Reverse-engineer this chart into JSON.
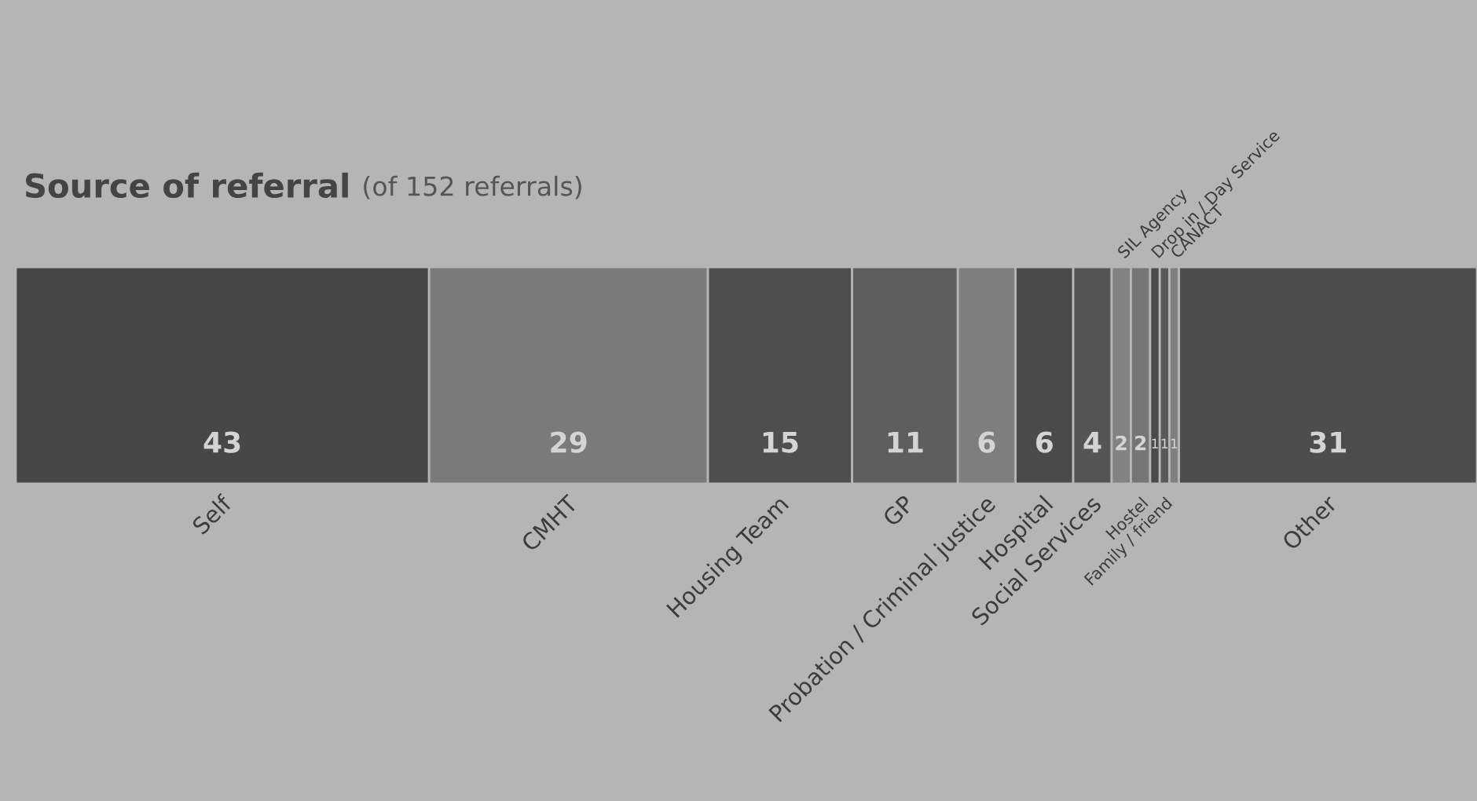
{
  "chart_data": {
    "type": "bar",
    "orientation": "horizontal",
    "stacked": true,
    "title": "Source of referral",
    "subtitle": "(of 152 referrals)",
    "categories": [
      null
    ],
    "data_labels": true,
    "xlim": [
      0,
      152
    ],
    "series": [
      {
        "name": "Self",
        "color": "#474747",
        "values": [
          43
        ]
      },
      {
        "name": "CMHT",
        "color": "#7a7a7a",
        "values": [
          29
        ]
      },
      {
        "name": "Housing Team",
        "color": "#4e4e4e",
        "values": [
          15
        ]
      },
      {
        "name": "GP",
        "color": "#5e5e5e",
        "values": [
          11
        ]
      },
      {
        "name": "Probation / Criminal justice",
        "color": "#7e7e7e",
        "values": [
          6
        ]
      },
      {
        "name": "Hospital",
        "color": "#4a4a4a",
        "values": [
          6
        ]
      },
      {
        "name": "Social Services",
        "color": "#555555",
        "values": [
          4
        ]
      },
      {
        "name": "SIL Agency",
        "color": "#828282",
        "values": [
          2
        ]
      },
      {
        "name": "Hostel",
        "color": "#757575",
        "values": [
          2
        ]
      },
      {
        "name": "Drop in / Day Service",
        "color": "#4a4a4a",
        "values": [
          1
        ]
      },
      {
        "name": "Family / friend",
        "color": "#5a5a5a",
        "values": [
          1
        ]
      },
      {
        "name": "CANACT",
        "color": "#808080",
        "values": [
          1
        ]
      },
      {
        "name": "Other",
        "color": "#4d4d4d",
        "values": [
          31
        ]
      }
    ]
  }
}
